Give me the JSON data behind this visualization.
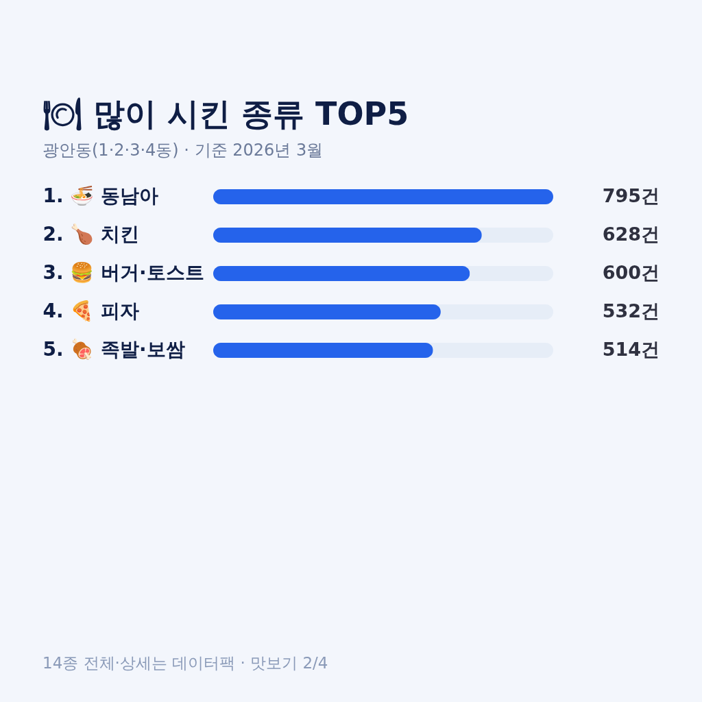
{
  "chart_data": {
    "type": "bar",
    "orientation": "horizontal",
    "title": "🍽 많이 시킨 종류 TOP5",
    "subtitle": "광안동(1·2·3·4동) · 기준 2026년 3월",
    "categories": [
      "1. 🍜 동남아",
      "2. 🍗 치킨",
      "3. 🍔 버거·토스트",
      "4. 🍕 피자",
      "5. 🍖 족발·보쌈"
    ],
    "values": [
      795,
      628,
      600,
      532,
      514
    ],
    "color": "#2563eb",
    "value_labels": [
      "795건",
      "628건",
      "600건",
      "532건",
      "514건"
    ],
    "xlim": [
      0,
      795
    ],
    "tick_labels": "y",
    "grid": false,
    "annotations": [
      "14종 전체·상세는 데이터팩 · 맛보기 2/4"
    ]
  }
}
